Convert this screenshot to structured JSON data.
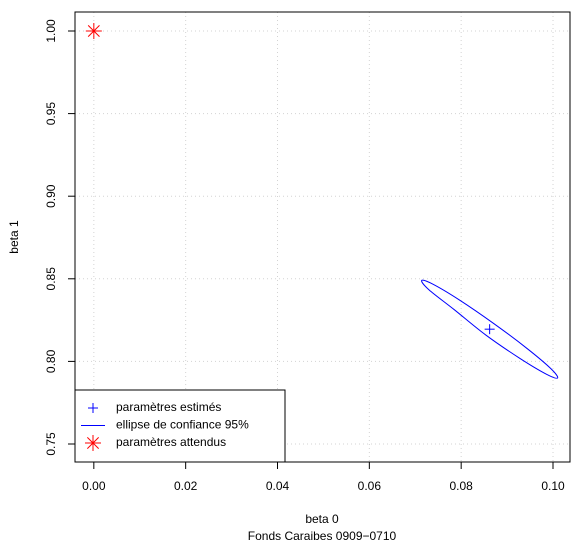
{
  "chart_data": {
    "type": "scatter",
    "xlabel": "beta 0",
    "ylabel": "beta 1",
    "subtitle": "Fonds Caraibes 0909−0710",
    "xlim": [
      -0.0041,
      0.1037
    ],
    "ylim": [
      0.7391,
      1.0115
    ],
    "xticks": [
      {
        "value": 0,
        "label": "0.00"
      },
      {
        "value": 0.02,
        "label": "0.02"
      },
      {
        "value": 0.04,
        "label": "0.04"
      },
      {
        "value": 0.06,
        "label": "0.06"
      },
      {
        "value": 0.08,
        "label": "0.08"
      },
      {
        "value": 0.1,
        "label": "0.10"
      }
    ],
    "yticks": [
      {
        "value": 0.75,
        "label": "0.75"
      },
      {
        "value": 0.8,
        "label": "0.80"
      },
      {
        "value": 0.85,
        "label": "0.85"
      },
      {
        "value": 0.9,
        "label": "0.90"
      },
      {
        "value": 0.95,
        "label": "0.95"
      },
      {
        "value": 1,
        "label": "1.00"
      }
    ],
    "grid": true,
    "legend": "bottom-left",
    "series": [
      {
        "name": "paramètres estimés",
        "color": "#0000ff",
        "marker": "plus",
        "x": [
          0.0862
        ],
        "values": [
          0.8195
        ]
      },
      {
        "name": "ellipse de confiance 95%",
        "color": "#0000ff",
        "marker": "line",
        "x": [
          0.101,
          0.0986,
          0.0928,
          0.0853,
          0.0785,
          0.073,
          0.0714,
          0.0738,
          0.0796,
          0.0871,
          0.0944,
          0.0995
        ],
        "values": [
          0.79,
          0.7922,
          0.8018,
          0.8161,
          0.8313,
          0.8433,
          0.849,
          0.8468,
          0.8372,
          0.8229,
          0.8077,
          0.7957
        ]
      },
      {
        "name": "paramètres attendus",
        "color": "#ff0000",
        "marker": "asterisk",
        "x": [
          0
        ],
        "values": [
          1
        ]
      }
    ]
  }
}
